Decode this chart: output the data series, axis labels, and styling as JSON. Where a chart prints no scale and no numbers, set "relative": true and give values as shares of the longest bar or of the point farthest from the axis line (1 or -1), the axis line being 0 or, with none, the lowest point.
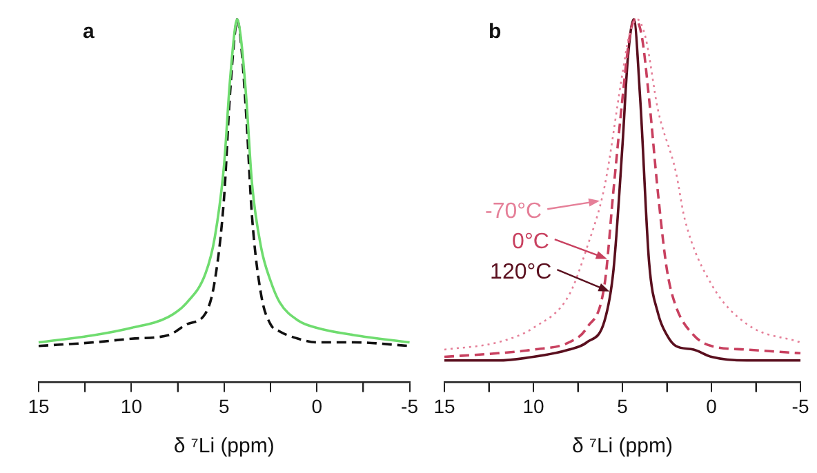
{
  "chart_data": [
    {
      "type": "line",
      "title": "a",
      "xlabel": "δ ⁷Li (ppm)",
      "relative": true,
      "grid": false,
      "legend": false,
      "tick_labels": "x",
      "marker": "none",
      "xlim": [
        15,
        -5
      ],
      "xticks": [
        15,
        {
          "value": 12.5,
          "label": null
        },
        10,
        {
          "value": 7.5,
          "label": null
        },
        5,
        {
          "value": 2.5,
          "label": null
        },
        0,
        {
          "value": -2.5,
          "label": null
        },
        -5
      ],
      "x": [
        15,
        12,
        10,
        8,
        7,
        6,
        5.5,
        5,
        4.7,
        4.4,
        4.3,
        4.1,
        3.8,
        3.5,
        3,
        2.5,
        2,
        1,
        0,
        -2,
        -5
      ],
      "series": [
        {
          "color": "#6fdc6f",
          "line_style": "solid",
          "values": [
            0.11,
            0.13,
            0.15,
            0.18,
            0.22,
            0.3,
            0.4,
            0.6,
            0.82,
            0.98,
            1.0,
            0.95,
            0.78,
            0.55,
            0.37,
            0.28,
            0.22,
            0.17,
            0.15,
            0.13,
            0.11
          ]
        },
        {
          "color": "#111111",
          "line_style": "dashed",
          "values": [
            0.1,
            0.11,
            0.12,
            0.13,
            0.16,
            0.19,
            0.28,
            0.51,
            0.78,
            0.97,
            1.0,
            0.94,
            0.73,
            0.46,
            0.24,
            0.16,
            0.14,
            0.12,
            0.11,
            0.11,
            0.1
          ]
        }
      ]
    },
    {
      "type": "line",
      "title": "b",
      "xlabel": "δ ⁷Li (ppm)",
      "relative": true,
      "grid": false,
      "legend": false,
      "tick_labels": "x",
      "marker": "none",
      "xlim": [
        15,
        -5
      ],
      "xticks": [
        15,
        {
          "value": 12.5,
          "label": null
        },
        10,
        {
          "value": 7.5,
          "label": null
        },
        5,
        {
          "value": 2.5,
          "label": null
        },
        0,
        {
          "value": -2.5,
          "label": null
        },
        -5
      ],
      "series": [
        {
          "color": "#e57f98",
          "line_style": "dotted",
          "x": [
            15,
            12,
            10,
            8,
            7,
            6,
            5,
            4.6,
            4.17,
            3.7,
            3,
            2,
            1.5,
            0,
            -2,
            -5
          ],
          "values": [
            0.09,
            0.11,
            0.15,
            0.24,
            0.37,
            0.54,
            0.85,
            0.96,
            1.0,
            0.95,
            0.75,
            0.58,
            0.45,
            0.27,
            0.16,
            0.11
          ]
        },
        {
          "color": "#c8405f",
          "line_style": "dashed",
          "x": [
            15,
            12,
            10,
            8,
            7,
            6,
            5.5,
            5,
            4.6,
            4.27,
            3.9,
            3.5,
            3,
            2.5,
            2,
            1,
            0,
            -2,
            -5
          ],
          "values": [
            0.07,
            0.08,
            0.09,
            0.11,
            0.15,
            0.27,
            0.53,
            0.78,
            0.95,
            1.0,
            0.95,
            0.78,
            0.52,
            0.31,
            0.21,
            0.13,
            0.1,
            0.09,
            0.08
          ]
        },
        {
          "color": "#5a0f1e",
          "line_style": "solid",
          "x": [
            15,
            12,
            10,
            8,
            7,
            6,
            5.5,
            5,
            4.7,
            4.36,
            4,
            3.5,
            3,
            2.5,
            2,
            1,
            0,
            -2,
            -5
          ],
          "values": [
            0.06,
            0.06,
            0.07,
            0.09,
            0.11,
            0.17,
            0.31,
            0.65,
            0.89,
            1.0,
            0.78,
            0.33,
            0.19,
            0.13,
            0.1,
            0.09,
            0.07,
            0.06,
            0.06
          ]
        }
      ],
      "annotations": [
        {
          "text": "-70°C",
          "x": 6.27,
          "y": 0.5
        },
        {
          "text": "0°C",
          "x": 5.86,
          "y": 0.34
        },
        {
          "text": "120°C",
          "x": 5.72,
          "y": 0.25
        }
      ]
    }
  ]
}
